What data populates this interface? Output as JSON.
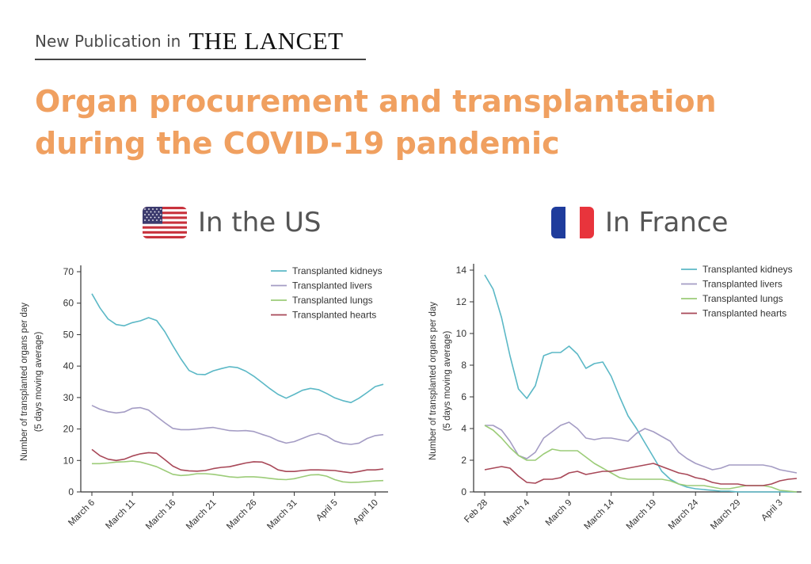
{
  "header": {
    "prefix": "New Publication in",
    "journal": "THE LANCET"
  },
  "title": {
    "line1": "Organ procurement and transplantation",
    "line2": "during the COVID-19 pandemic"
  },
  "colors": {
    "title": "#f0a060",
    "kidneys": "#5bb8c6",
    "livers": "#a49cc4",
    "lungs": "#9ccc78",
    "hearts": "#a84858"
  },
  "chart_data": [
    {
      "type": "line",
      "panel_label": "In the US",
      "flag": "us-flag",
      "ylabel_line1": "Number of transplanted organs per day",
      "ylabel_line2": "(5 days moving average)",
      "ylim": [
        0,
        70
      ],
      "yticks": [
        0,
        10,
        20,
        30,
        40,
        50,
        60,
        70
      ],
      "x": [
        "March 6",
        "March 7",
        "March 8",
        "March 9",
        "March 10",
        "March 11",
        "March 12",
        "March 13",
        "March 14",
        "March 15",
        "March 16",
        "March 17",
        "March 18",
        "March 19",
        "March 20",
        "March 21",
        "March 22",
        "March 23",
        "March 24",
        "March 25",
        "March 26",
        "March 27",
        "March 28",
        "March 29",
        "March 30",
        "March 31",
        "April 1",
        "April 2",
        "April 3",
        "April 4",
        "April 5",
        "April 6",
        "April 7",
        "April 8",
        "April 9",
        "April 10",
        "April 11"
      ],
      "xtick_labels": [
        "March 6",
        "March 11",
        "March 16",
        "March 21",
        "March 26",
        "March 31",
        "April 5",
        "April 10"
      ],
      "series": [
        {
          "name": "Transplanted kidneys",
          "color": "#5bb8c6",
          "values": [
            63,
            58.5,
            55,
            53.2,
            52.8,
            53.8,
            54.4,
            55.4,
            54.5,
            51,
            46.5,
            42.3,
            38.6,
            37.4,
            37.3,
            38.5,
            39.2,
            39.8,
            39.5,
            38.4,
            36.8,
            34.8,
            32.8,
            31,
            29.8,
            31,
            32.3,
            32.9,
            32.5,
            31.3,
            29.9,
            29,
            28.4,
            29.8,
            31.6,
            33.5,
            34.2
          ]
        },
        {
          "name": "Transplanted livers",
          "color": "#a49cc4",
          "values": [
            27.5,
            26.3,
            25.5,
            25.1,
            25.4,
            26.6,
            26.8,
            26,
            24,
            22,
            20.2,
            19.8,
            19.8,
            20,
            20.3,
            20.5,
            20,
            19.5,
            19.4,
            19.5,
            19.2,
            18.3,
            17.5,
            16.3,
            15.5,
            16,
            17,
            18,
            18.6,
            17.8,
            16.2,
            15.4,
            15.1,
            15.5,
            17,
            17.9,
            18.2
          ]
        },
        {
          "name": "Transplanted lungs",
          "color": "#9ccc78",
          "values": [
            9,
            9,
            9.2,
            9.5,
            9.6,
            9.8,
            9.5,
            8.8,
            8,
            6.8,
            5.6,
            5.2,
            5.4,
            5.8,
            5.8,
            5.6,
            5.2,
            4.8,
            4.6,
            4.8,
            4.8,
            4.6,
            4.3,
            4,
            3.9,
            4.2,
            4.8,
            5.4,
            5.5,
            5,
            3.9,
            3.2,
            3,
            3.1,
            3.3,
            3.5,
            3.6
          ]
        },
        {
          "name": "Transplanted hearts",
          "color": "#a84858",
          "values": [
            13.5,
            11.5,
            10.4,
            10,
            10.4,
            11.4,
            12.1,
            12.5,
            12.3,
            10.3,
            8.2,
            7,
            6.7,
            6.6,
            6.8,
            7.4,
            7.8,
            8,
            8.6,
            9.2,
            9.6,
            9.5,
            8.5,
            7,
            6.5,
            6.5,
            6.8,
            7,
            7,
            6.9,
            6.8,
            6.4,
            6.1,
            6.5,
            7,
            7,
            7.3
          ]
        }
      ]
    },
    {
      "type": "line",
      "panel_label": "In France",
      "flag": "france-flag",
      "ylabel_line1": "Number of transplanted organs per day",
      "ylabel_line2": "(5 days moving average)",
      "ylim": [
        0,
        14
      ],
      "yticks": [
        0,
        2,
        4,
        6,
        8,
        10,
        12,
        14
      ],
      "x": [
        "Feb 28",
        "Feb 29",
        "March 1",
        "March 2",
        "March 3",
        "March 4",
        "March 5",
        "March 6",
        "March 7",
        "March 8",
        "March 9",
        "March 10",
        "March 11",
        "March 12",
        "March 13",
        "March 14",
        "March 15",
        "March 16",
        "March 17",
        "March 18",
        "March 19",
        "March 20",
        "March 21",
        "March 22",
        "March 23",
        "March 24",
        "March 25",
        "March 26",
        "March 27",
        "March 28",
        "March 29",
        "March 30",
        "March 31",
        "April 1",
        "April 2",
        "April 3",
        "April 4",
        "April 5"
      ],
      "xtick_labels": [
        "Feb 28",
        "March 4",
        "March 9",
        "March 14",
        "March 19",
        "March 24",
        "March 29",
        "April 3"
      ],
      "series": [
        {
          "name": "Transplanted kidneys",
          "color": "#5bb8c6",
          "values": [
            13.7,
            12.8,
            11,
            8.6,
            6.5,
            5.9,
            6.7,
            8.6,
            8.8,
            8.8,
            9.2,
            8.7,
            7.8,
            8.1,
            8.2,
            7.3,
            6,
            4.8,
            4,
            3.1,
            2.2,
            1.3,
            0.8,
            0.5,
            0.3,
            0.2,
            0.15,
            0.1,
            0.05,
            0.05,
            0,
            0,
            0,
            0,
            0,
            0,
            0,
            0
          ]
        },
        {
          "name": "Transplanted livers",
          "color": "#a49cc4",
          "values": [
            4.2,
            4.2,
            3.9,
            3.2,
            2.3,
            2.1,
            2.5,
            3.4,
            3.8,
            4.2,
            4.4,
            4,
            3.4,
            3.3,
            3.4,
            3.4,
            3.3,
            3.2,
            3.7,
            4,
            3.8,
            3.5,
            3.2,
            2.5,
            2.1,
            1.8,
            1.6,
            1.4,
            1.5,
            1.7,
            1.7,
            1.7,
            1.7,
            1.7,
            1.6,
            1.4,
            1.3,
            1.2
          ]
        },
        {
          "name": "Transplanted lungs",
          "color": "#9ccc78",
          "values": [
            4.2,
            3.9,
            3.4,
            2.8,
            2.3,
            2,
            2,
            2.4,
            2.7,
            2.6,
            2.6,
            2.6,
            2.2,
            1.8,
            1.5,
            1.2,
            0.9,
            0.8,
            0.8,
            0.8,
            0.8,
            0.8,
            0.7,
            0.5,
            0.4,
            0.4,
            0.4,
            0.3,
            0.2,
            0.2,
            0.3,
            0.4,
            0.4,
            0.4,
            0.3,
            0.1,
            0.05,
            0
          ]
        },
        {
          "name": "Transplanted hearts",
          "color": "#a84858",
          "values": [
            1.4,
            1.5,
            1.6,
            1.5,
            1,
            0.6,
            0.55,
            0.8,
            0.8,
            0.9,
            1.2,
            1.3,
            1.1,
            1.2,
            1.3,
            1.3,
            1.4,
            1.5,
            1.6,
            1.7,
            1.8,
            1.6,
            1.4,
            1.2,
            1.1,
            0.9,
            0.8,
            0.6,
            0.5,
            0.5,
            0.5,
            0.4,
            0.4,
            0.4,
            0.5,
            0.7,
            0.8,
            0.85
          ]
        }
      ]
    }
  ]
}
